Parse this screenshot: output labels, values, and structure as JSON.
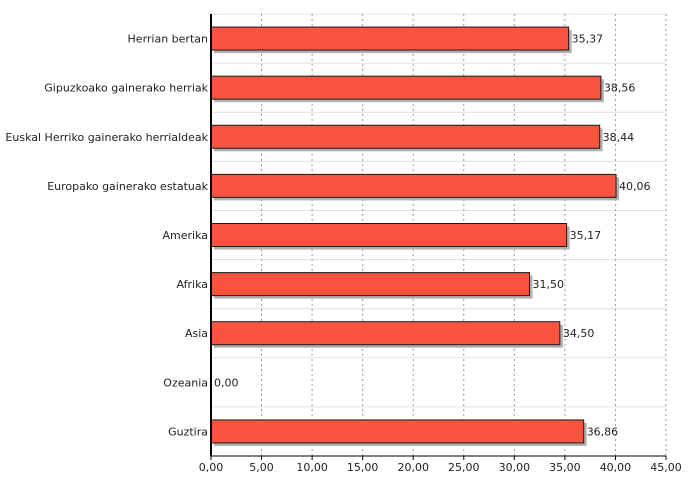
{
  "chart_data": {
    "type": "bar",
    "orientation": "horizontal",
    "title": "",
    "xlabel": "",
    "ylabel": "",
    "categories": [
      "Herrian bertan",
      "Gipuzkoako gainerako herriak",
      "Euskal Herriko gainerako herrialdeak",
      "Europako gainerako estatuak",
      "Amerika",
      "Afrika",
      "Asia",
      "Ozeania",
      "Guztira"
    ],
    "values": [
      35.37,
      38.56,
      38.44,
      40.06,
      35.17,
      31.5,
      34.5,
      0.0,
      36.86
    ],
    "value_labels": [
      "35,37",
      "38,56",
      "38,44",
      "40,06",
      "35,17",
      "31,50",
      "34,50",
      "0,00",
      "36,86"
    ],
    "xlim": [
      0,
      45
    ],
    "x_ticks": [
      0,
      5,
      10,
      15,
      20,
      25,
      30,
      35,
      40,
      45
    ],
    "x_tick_labels": [
      "0,00",
      "5,00",
      "10,00",
      "15,00",
      "20,00",
      "25,00",
      "30,00",
      "35,00",
      "40,00",
      "45,00"
    ],
    "grid": true,
    "legend": "none",
    "colors": {
      "bar_fill": "#fa5441",
      "bar_stroke": "#1a1a1a",
      "bar_shadow": "#b0b0b0",
      "grid": "#9a9a9a",
      "row_divider": "#e0e0e0",
      "axis": "#000000"
    }
  }
}
